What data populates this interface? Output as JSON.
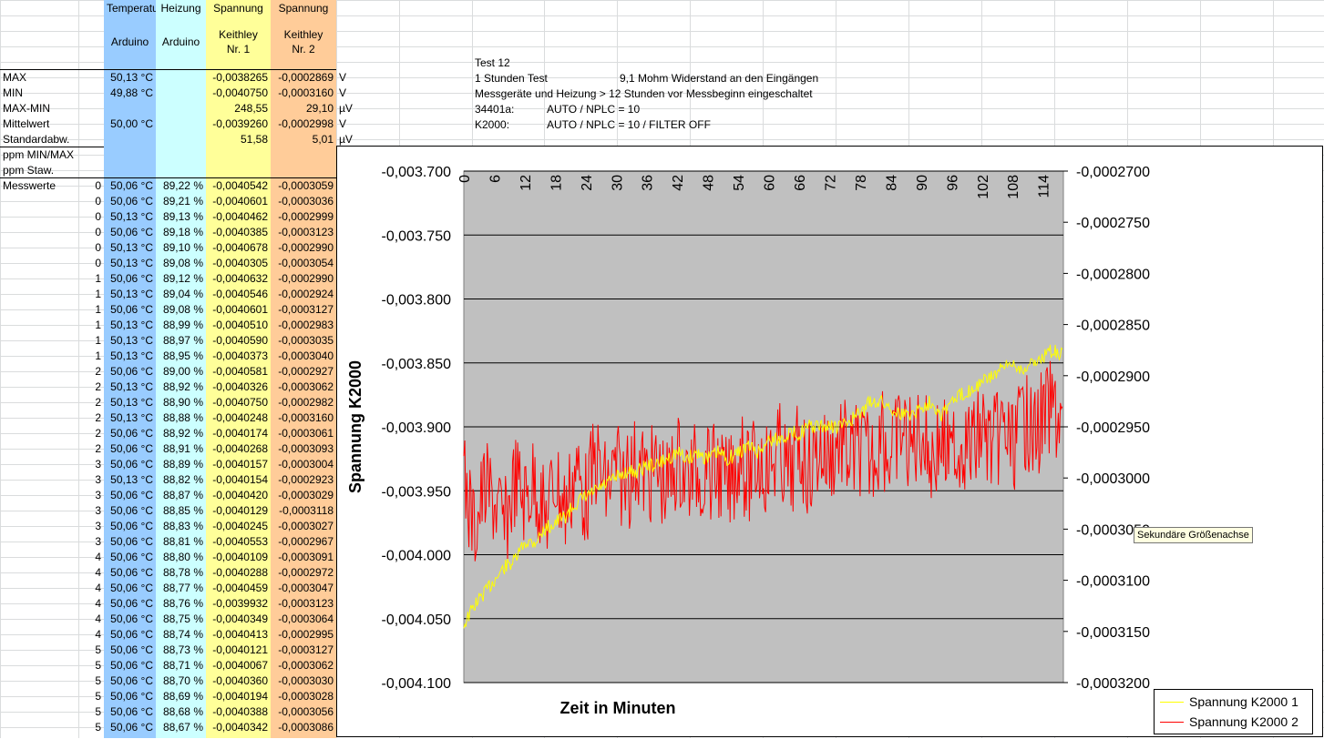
{
  "headers": {
    "col_temp": "Temperatu",
    "col_heat": "Heizung",
    "col_v1": "Spannung",
    "col_v2": "Spannung",
    "sub_temp": "Arduino",
    "sub_heat": "Arduino",
    "sub_v1_line1": "Keithley",
    "sub_v1_line2": "Nr. 1",
    "sub_v2_line1": "Keithley",
    "sub_v2_line2": "Nr. 2"
  },
  "stats": [
    {
      "label": "MAX",
      "temp": "50,13 °C",
      "heat": "",
      "v1": "-0,0038265",
      "v2": "-0,0002869",
      "unit": "V"
    },
    {
      "label": "MIN",
      "temp": "49,88 °C",
      "heat": "",
      "v1": "-0,0040750",
      "v2": "-0,0003160",
      "unit": "V"
    },
    {
      "label": "MAX-MIN",
      "temp": "",
      "heat": "",
      "v1": "248,55",
      "v2": "29,10",
      "unit": "µV"
    },
    {
      "label": "Mittelwert",
      "temp": "50,00 °C",
      "heat": "",
      "v1": "-0,0039260",
      "v2": "-0,0002998",
      "unit": "V"
    },
    {
      "label": "Standardabw.",
      "temp": "",
      "heat": "",
      "v1": "51,58",
      "v2": "5,01",
      "unit": "µV"
    },
    {
      "label": "ppm MIN/MAX",
      "temp": "",
      "heat": "",
      "v1": "",
      "v2": "",
      "unit": ""
    },
    {
      "label": "ppm Staw.",
      "temp": "",
      "heat": "",
      "v1": "",
      "v2": "",
      "unit": ""
    }
  ],
  "notes": {
    "test": "Test 12",
    "line1a": "1 Stunden Test",
    "line1b": "9,1 Mohm Widerstand an den Eingängen",
    "line2": "Messgeräte und Heizung > 12 Stunden vor Messbeginn eingeschaltet",
    "line3a": "34401a:",
    "line3b": "AUTO / NPLC = 10",
    "line4a": "K2000:",
    "line4b": "AUTO / NPLC = 10 / FILTER OFF"
  },
  "measure_label": "Messwerte",
  "rows": [
    [
      "0",
      "50,06 °C",
      "89,22 %",
      "-0,0040542",
      "-0,0003059"
    ],
    [
      "0",
      "50,06 °C",
      "89,21 %",
      "-0,0040601",
      "-0,0003036"
    ],
    [
      "0",
      "50,13 °C",
      "89,13 %",
      "-0,0040462",
      "-0,0002999"
    ],
    [
      "0",
      "50,06 °C",
      "89,18 %",
      "-0,0040385",
      "-0,0003123"
    ],
    [
      "0",
      "50,13 °C",
      "89,10 %",
      "-0,0040678",
      "-0,0002990"
    ],
    [
      "0",
      "50,13 °C",
      "89,08 %",
      "-0,0040305",
      "-0,0003054"
    ],
    [
      "1",
      "50,06 °C",
      "89,12 %",
      "-0,0040632",
      "-0,0002990"
    ],
    [
      "1",
      "50,13 °C",
      "89,04 %",
      "-0,0040546",
      "-0,0002924"
    ],
    [
      "1",
      "50,06 °C",
      "89,08 %",
      "-0,0040601",
      "-0,0003127"
    ],
    [
      "1",
      "50,13 °C",
      "88,99 %",
      "-0,0040510",
      "-0,0002983"
    ],
    [
      "1",
      "50,13 °C",
      "88,97 %",
      "-0,0040590",
      "-0,0003035"
    ],
    [
      "1",
      "50,13 °C",
      "88,95 %",
      "-0,0040373",
      "-0,0003040"
    ],
    [
      "2",
      "50,06 °C",
      "89,00 %",
      "-0,0040581",
      "-0,0002927"
    ],
    [
      "2",
      "50,13 °C",
      "88,92 %",
      "-0,0040326",
      "-0,0003062"
    ],
    [
      "2",
      "50,13 °C",
      "88,90 %",
      "-0,0040750",
      "-0,0002982"
    ],
    [
      "2",
      "50,13 °C",
      "88,88 %",
      "-0,0040248",
      "-0,0003160"
    ],
    [
      "2",
      "50,06 °C",
      "88,92 %",
      "-0,0040174",
      "-0,0003061"
    ],
    [
      "2",
      "50,06 °C",
      "88,91 %",
      "-0,0040268",
      "-0,0003093"
    ],
    [
      "3",
      "50,06 °C",
      "88,89 %",
      "-0,0040157",
      "-0,0003004"
    ],
    [
      "3",
      "50,13 °C",
      "88,82 %",
      "-0,0040154",
      "-0,0002923"
    ],
    [
      "3",
      "50,06 °C",
      "88,87 %",
      "-0,0040420",
      "-0,0003029"
    ],
    [
      "3",
      "50,06 °C",
      "88,85 %",
      "-0,0040129",
      "-0,0003118"
    ],
    [
      "3",
      "50,06 °C",
      "88,83 %",
      "-0,0040245",
      "-0,0003027"
    ],
    [
      "3",
      "50,06 °C",
      "88,81 %",
      "-0,0040553",
      "-0,0002967"
    ],
    [
      "4",
      "50,06 °C",
      "88,80 %",
      "-0,0040109",
      "-0,0003091"
    ],
    [
      "4",
      "50,06 °C",
      "88,78 %",
      "-0,0040288",
      "-0,0002972"
    ],
    [
      "4",
      "50,06 °C",
      "88,77 %",
      "-0,0040459",
      "-0,0003047"
    ],
    [
      "4",
      "50,06 °C",
      "88,76 %",
      "-0,0039932",
      "-0,0003123"
    ],
    [
      "4",
      "50,06 °C",
      "88,75 %",
      "-0,0040349",
      "-0,0003064"
    ],
    [
      "4",
      "50,06 °C",
      "88,74 %",
      "-0,0040413",
      "-0,0002995"
    ],
    [
      "5",
      "50,06 °C",
      "88,73 %",
      "-0,0040121",
      "-0,0003127"
    ],
    [
      "5",
      "50,06 °C",
      "88,71 %",
      "-0,0040067",
      "-0,0003062"
    ],
    [
      "5",
      "50,06 °C",
      "88,70 %",
      "-0,0040360",
      "-0,0003030"
    ],
    [
      "5",
      "50,06 °C",
      "88,69 %",
      "-0,0040194",
      "-0,0003028"
    ],
    [
      "5",
      "50,06 °C",
      "88,68 %",
      "-0,0040388",
      "-0,0003056"
    ],
    [
      "5",
      "50,06 °C",
      "88,67 %",
      "-0,0040342",
      "-0,0003086"
    ]
  ],
  "tooltip": "Sekundäre Größenachse",
  "chart_data": {
    "type": "line",
    "xlabel": "Zeit in Minuten",
    "ylabel": "Spannung K2000",
    "x_ticks": [
      "0",
      "6",
      "12",
      "18",
      "24",
      "30",
      "36",
      "42",
      "48",
      "54",
      "60",
      "66",
      "72",
      "78",
      "84",
      "90",
      "96",
      "102",
      "108",
      "114"
    ],
    "x_range": [
      0,
      118
    ],
    "y_left_ticks": [
      "-0,003.700",
      "-0,003.750",
      "-0,003.800",
      "-0,003.850",
      "-0,003.900",
      "-0,003.950",
      "-0,004.000",
      "-0,004.050",
      "-0,004.100"
    ],
    "y_left_range": [
      -0.0041,
      -0.0037
    ],
    "y_right_ticks": [
      "-0,0002700",
      "-0,0002750",
      "-0,0002800",
      "-0,0002850",
      "-0,0002900",
      "-0,0002950",
      "-0,0003000",
      "-0,0003050",
      "-0,0003100",
      "-0,0003150",
      "-0,0003200"
    ],
    "y_right_range": [
      -0.00032,
      -0.00027
    ],
    "grid": true,
    "legend_position": "bottom-right",
    "colors": {
      "plot_bg": "#c0c0c0",
      "series1": "#ffff00",
      "series2": "#ff0000"
    },
    "series": [
      {
        "name": "Spannung K2000 1",
        "axis": "left",
        "points": [
          [
            0,
            -0.004055
          ],
          [
            2,
            -0.00404
          ],
          [
            4,
            -0.00403
          ],
          [
            6,
            -0.00402
          ],
          [
            8,
            -0.00401
          ],
          [
            10,
            -0.004005
          ],
          [
            12,
            -0.00399
          ],
          [
            14,
            -0.00399
          ],
          [
            16,
            -0.00398
          ],
          [
            18,
            -0.003975
          ],
          [
            20,
            -0.00397
          ],
          [
            22,
            -0.00396
          ],
          [
            24,
            -0.003955
          ],
          [
            26,
            -0.00395
          ],
          [
            28,
            -0.003945
          ],
          [
            30,
            -0.00394
          ],
          [
            32,
            -0.003935
          ],
          [
            34,
            -0.003935
          ],
          [
            36,
            -0.00393
          ],
          [
            38,
            -0.00393
          ],
          [
            40,
            -0.003925
          ],
          [
            42,
            -0.00392
          ],
          [
            44,
            -0.003925
          ],
          [
            46,
            -0.00392
          ],
          [
            48,
            -0.003925
          ],
          [
            50,
            -0.00392
          ],
          [
            52,
            -0.003925
          ],
          [
            54,
            -0.00392
          ],
          [
            56,
            -0.003915
          ],
          [
            58,
            -0.00392
          ],
          [
            60,
            -0.00391
          ],
          [
            62,
            -0.00391
          ],
          [
            64,
            -0.003905
          ],
          [
            66,
            -0.003905
          ],
          [
            68,
            -0.0039
          ],
          [
            70,
            -0.0039
          ],
          [
            72,
            -0.0039
          ],
          [
            74,
            -0.0039
          ],
          [
            76,
            -0.003895
          ],
          [
            78,
            -0.00389
          ],
          [
            80,
            -0.00388
          ],
          [
            82,
            -0.00388
          ],
          [
            84,
            -0.003885
          ],
          [
            86,
            -0.00389
          ],
          [
            88,
            -0.00389
          ],
          [
            90,
            -0.003885
          ],
          [
            92,
            -0.00388
          ],
          [
            94,
            -0.00389
          ],
          [
            96,
            -0.00388
          ],
          [
            98,
            -0.003875
          ],
          [
            100,
            -0.00387
          ],
          [
            102,
            -0.003865
          ],
          [
            104,
            -0.00386
          ],
          [
            106,
            -0.003855
          ],
          [
            108,
            -0.00385
          ],
          [
            110,
            -0.003855
          ],
          [
            112,
            -0.00385
          ],
          [
            114,
            -0.003845
          ],
          [
            116,
            -0.00384
          ],
          [
            118,
            -0.003845
          ]
        ]
      },
      {
        "name": "Spannung K2000 2",
        "axis": "right",
        "points": [
          [
            0,
            -0.0003
          ],
          [
            2,
            -0.000305
          ],
          [
            4,
            -0.000301
          ],
          [
            6,
            -0.000302
          ],
          [
            8,
            -0.000305
          ],
          [
            10,
            -0.0003
          ],
          [
            12,
            -0.000302
          ],
          [
            14,
            -0.0003
          ],
          [
            16,
            -0.000304
          ],
          [
            18,
            -0.0003
          ],
          [
            20,
            -0.000303
          ],
          [
            22,
            -0.000299
          ],
          [
            24,
            -0.000302
          ],
          [
            26,
            -0.000298
          ],
          [
            28,
            -0.000301
          ],
          [
            30,
            -0.000299
          ],
          [
            32,
            -0.000301
          ],
          [
            34,
            -0.000298
          ],
          [
            36,
            -0.0003
          ],
          [
            38,
            -0.000299
          ],
          [
            40,
            -0.000301
          ],
          [
            42,
            -0.000298
          ],
          [
            44,
            -0.0003
          ],
          [
            46,
            -0.000299
          ],
          [
            48,
            -0.0003
          ],
          [
            50,
            -0.000299
          ],
          [
            52,
            -0.000301
          ],
          [
            54,
            -0.000298
          ],
          [
            56,
            -0.0003
          ],
          [
            58,
            -0.000298
          ],
          [
            60,
            -0.000299
          ],
          [
            62,
            -0.000297
          ],
          [
            64,
            -0.0003
          ],
          [
            66,
            -0.000297
          ],
          [
            68,
            -0.000299
          ],
          [
            70,
            -0.000297
          ],
          [
            72,
            -0.000298
          ],
          [
            74,
            -0.000296
          ],
          [
            76,
            -0.000298
          ],
          [
            78,
            -0.000297
          ],
          [
            80,
            -0.000298
          ],
          [
            82,
            -0.000296
          ],
          [
            84,
            -0.000298
          ],
          [
            86,
            -0.000295
          ],
          [
            88,
            -0.000297
          ],
          [
            90,
            -0.000295
          ],
          [
            92,
            -0.000298
          ],
          [
            94,
            -0.000296
          ],
          [
            96,
            -0.000299
          ],
          [
            98,
            -0.000296
          ],
          [
            100,
            -0.000297
          ],
          [
            102,
            -0.000295
          ],
          [
            104,
            -0.000297
          ],
          [
            106,
            -0.000295
          ],
          [
            108,
            -0.000297
          ],
          [
            110,
            -0.000294
          ],
          [
            112,
            -0.000296
          ],
          [
            114,
            -0.000294
          ],
          [
            116,
            -0.000293
          ],
          [
            118,
            -0.000295
          ]
        ]
      }
    ]
  }
}
